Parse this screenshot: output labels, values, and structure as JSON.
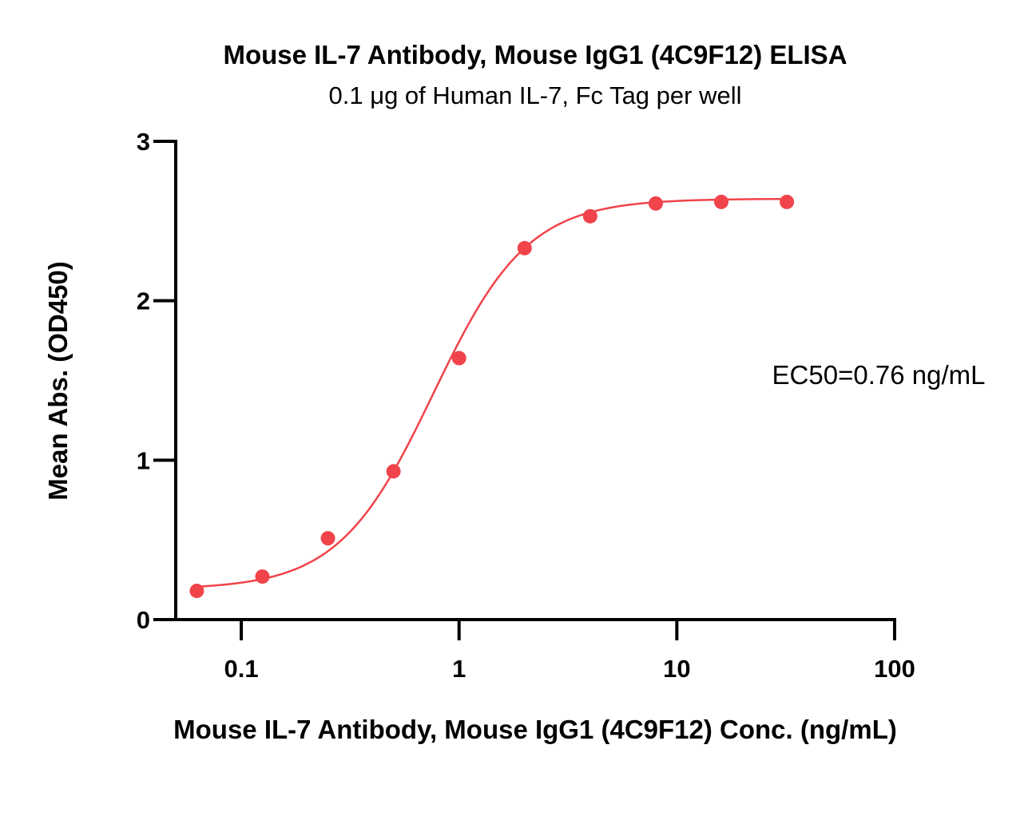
{
  "chart_data": {
    "type": "scatter",
    "title": "Mouse IL-7 Antibody, Mouse IgG1 (4C9F12) ELISA",
    "subtitle": "0.1 μg of Human IL-7, Fc Tag per well",
    "xlabel": "Mouse IL-7 Antibody, Mouse IgG1 (4C9F12) Conc. (ng/mL)",
    "ylabel": "Mean Abs. (OD450)",
    "xscale": "log",
    "xlim": [
      0.05,
      100
    ],
    "ylim": [
      0,
      3
    ],
    "xticks": [
      0.1,
      1,
      10,
      100
    ],
    "xtick_labels": [
      "0.1",
      "1",
      "10",
      "100"
    ],
    "yticks": [
      0,
      1,
      2,
      3
    ],
    "ytick_labels": [
      "0",
      "1",
      "2",
      "3"
    ],
    "grid": false,
    "color": "#f0434a",
    "series": [
      {
        "x": [
          0.0625,
          0.125,
          0.25,
          0.5,
          1,
          2,
          4,
          8,
          16,
          32
        ],
        "y": [
          0.18,
          0.27,
          0.51,
          0.93,
          1.64,
          2.33,
          2.53,
          2.61,
          2.62,
          2.62
        ]
      }
    ],
    "fit": {
      "type": "4PL",
      "bottom": 0.19,
      "top": 2.64,
      "ec50": 0.76,
      "hill": 2.0
    },
    "annotation": "EC50=0.76 ng/mL"
  }
}
